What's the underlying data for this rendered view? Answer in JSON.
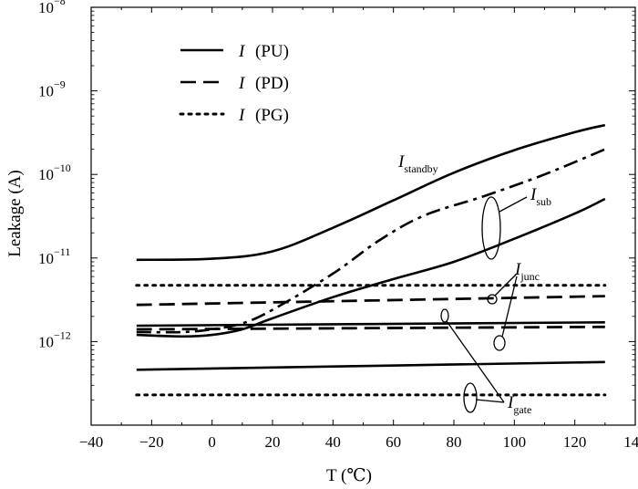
{
  "chart_data": {
    "type": "line",
    "title": "",
    "xlabel": "T (℃)",
    "ylabel": "Leakage (A)",
    "xlim": [
      -40,
      140
    ],
    "ylim": [
      1e-13,
      1e-08
    ],
    "y_scale": "log",
    "grid": false,
    "legend_position": "top-left",
    "x_ticks": [
      "−40",
      "−20",
      "0",
      "20",
      "40",
      "60",
      "80",
      "100",
      "120",
      "140"
    ],
    "y_ticks": [
      {
        "base": "10",
        "exp": "−12",
        "value": 1e-12
      },
      {
        "base": "10",
        "exp": "−11",
        "value": 1e-11
      },
      {
        "base": "10",
        "exp": "−10",
        "value": 1e-10
      },
      {
        "base": "10",
        "exp": "−9",
        "value": 1e-09
      },
      {
        "base": "10",
        "exp": "−8",
        "value": 1e-08
      }
    ],
    "legend": [
      {
        "symbol": "I",
        "label": "(PU)",
        "style": "solid"
      },
      {
        "symbol": "I",
        "label": "(PD)",
        "style": "dashed"
      },
      {
        "symbol": "I",
        "label": "(PG)",
        "style": "dotted"
      }
    ],
    "annotations": [
      {
        "base": "I",
        "sub": "standby"
      },
      {
        "base": "I",
        "sub": "sub"
      },
      {
        "base": "I",
        "sub": "junc"
      },
      {
        "base": "I",
        "sub": "gate"
      }
    ],
    "series": [
      {
        "component": "standby",
        "style": "solid",
        "x": [
          -25,
          0,
          20,
          40,
          60,
          80,
          100,
          120,
          130
        ],
        "y": [
          9.5e-12,
          9.8e-12,
          1.2e-11,
          2.3e-11,
          4.9e-11,
          1.05e-10,
          1.95e-10,
          3.2e-10,
          3.9e-10
        ]
      },
      {
        "component": "sub",
        "style": "solid",
        "x": [
          -25,
          -10,
          0,
          10,
          20,
          40,
          60,
          80,
          100,
          120,
          130
        ],
        "y": [
          1.2e-12,
          1.15e-12,
          1.2e-12,
          1.4e-12,
          1.9e-12,
          3.4e-12,
          5.6e-12,
          9e-12,
          1.7e-11,
          3.4e-11,
          5.1e-11
        ]
      },
      {
        "component": "sub",
        "style": "dashdot",
        "x": [
          -25,
          -10,
          0,
          10,
          20,
          40,
          55,
          70,
          90,
          110,
          130
        ],
        "y": [
          1.3e-12,
          1.3e-12,
          1.4e-12,
          1.65e-12,
          2.4e-12,
          6.5e-12,
          1.6e-11,
          3.2e-11,
          5.5e-11,
          1e-10,
          2e-10
        ]
      },
      {
        "component": "junc",
        "style": "dotted",
        "x": [
          -25,
          130
        ],
        "y": [
          4.7e-12,
          4.7e-12
        ]
      },
      {
        "component": "junc",
        "style": "dashed",
        "x": [
          -25,
          130
        ],
        "y": [
          2.75e-12,
          3.5e-12
        ]
      },
      {
        "component": "junc",
        "style": "solid",
        "x": [
          -25,
          130
        ],
        "y": [
          1.55e-12,
          1.7e-12
        ]
      },
      {
        "component": "gate",
        "style": "dashed",
        "x": [
          -25,
          130
        ],
        "y": [
          1.4e-12,
          1.5e-12
        ]
      },
      {
        "component": "gate",
        "style": "solid",
        "x": [
          -25,
          130
        ],
        "y": [
          4.6e-13,
          5.7e-13
        ]
      },
      {
        "component": "gate",
        "style": "dotted",
        "x": [
          -25,
          130
        ],
        "y": [
          2.3e-13,
          2.3e-13
        ]
      }
    ]
  }
}
